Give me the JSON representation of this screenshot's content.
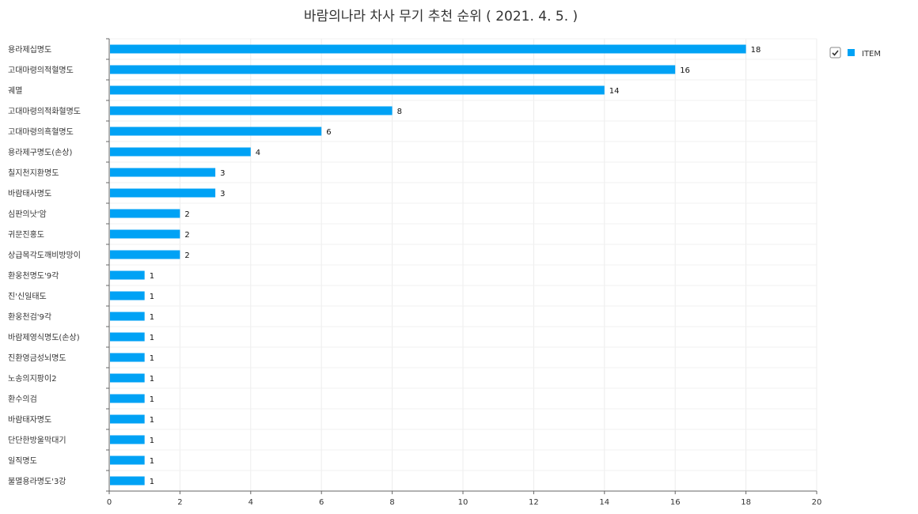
{
  "chart_data": {
    "type": "bar",
    "orientation": "horizontal",
    "title": "바람의나라 차사 무기 추천 순위 ( 2021. 4. 5. )",
    "xlabel": "",
    "ylabel": "",
    "xlim": [
      0,
      20
    ],
    "xticks": [
      0,
      2,
      4,
      6,
      8,
      10,
      12,
      14,
      16,
      18,
      20
    ],
    "grid": true,
    "legend_position": "top-right",
    "categories": [
      "용라제십명도",
      "고대마령의적혈명도",
      "궤멸",
      "고대마령의적화혈명도",
      "고대마령의흑혈명도",
      "용라제구명도(손상)",
      "칠지천지환명도",
      "바람태사명도",
      "심판의낫'암",
      "귀문진홍도",
      "상급목각도깨비방망이",
      "환웅천명도'9각",
      "진'신일태도",
      "환웅천검'9각",
      "바람제영식명도(손상)",
      "진환영금성뇌명도",
      "노송의지팡이2",
      "환수의검",
      "바람태자명도",
      "단단한방울막대기",
      "일직명도",
      "불멸용라명도'3강"
    ],
    "series": [
      {
        "name": "ITEM",
        "color": "#00a2f5",
        "values": [
          18,
          16,
          14,
          8,
          6,
          4,
          3,
          3,
          2,
          2,
          2,
          1,
          1,
          1,
          1,
          1,
          1,
          1,
          1,
          1,
          1,
          1
        ]
      }
    ]
  }
}
